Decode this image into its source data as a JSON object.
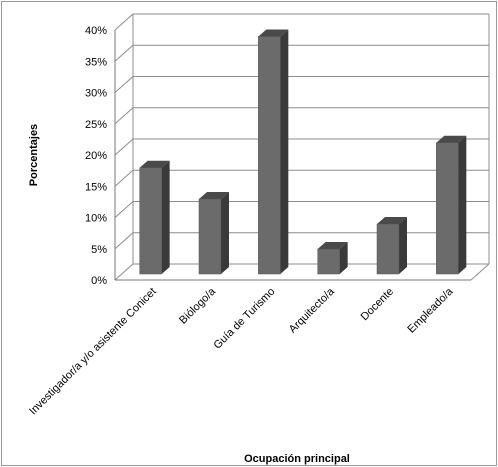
{
  "chart_data": {
    "type": "bar",
    "categories": [
      "Investigador/a y/o asistente Conicet",
      "Biólogo/a",
      "Guía de Turismo",
      "Arquitecto/a",
      "Docente",
      "Empleado/a"
    ],
    "values": [
      17,
      12,
      38,
      4,
      8,
      21
    ],
    "xlabel": "Ocupación principal",
    "ylabel": "Porcentajes",
    "ylim": [
      0,
      40
    ],
    "yticks": [
      "0%",
      "5%",
      "10%",
      "15%",
      "20%",
      "25%",
      "30%",
      "35%",
      "40%"
    ],
    "grid": true,
    "style": "3d-column",
    "colors": {
      "bar_front": "#6b6b6b",
      "bar_side": "#3a3a3a",
      "bar_top": "#4a4a4a",
      "grid": "#8c8c8c"
    }
  }
}
